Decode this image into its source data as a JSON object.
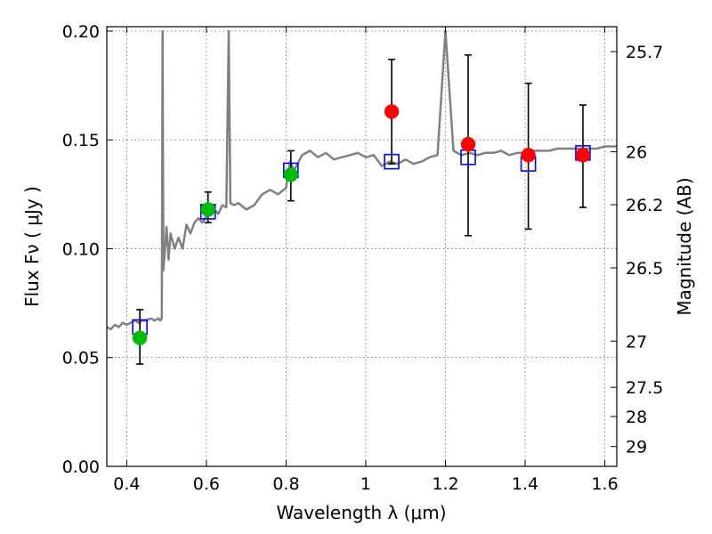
{
  "chart_data": {
    "type": "scatter",
    "title": "",
    "xlabel": "Wavelength  λ (μm)",
    "ylabel": "Flux  Fν  ( μJy )",
    "y2label": "Magnitude (AB)",
    "xlim": [
      0.35,
      1.63
    ],
    "ylim": [
      0.0,
      0.202
    ],
    "grid": true,
    "x_ticks": [
      {
        "value": 0.4,
        "label": "0.4"
      },
      {
        "value": 0.6,
        "label": "0.6"
      },
      {
        "value": 0.8,
        "label": "0.8"
      },
      {
        "value": 1.0,
        "label": "1"
      },
      {
        "value": 1.2,
        "label": "1.2"
      },
      {
        "value": 1.4,
        "label": "1.4"
      },
      {
        "value": 1.6,
        "label": "1.6"
      }
    ],
    "y_ticks": [
      {
        "value": 0.0,
        "label": "0.00"
      },
      {
        "value": 0.05,
        "label": "0.05"
      },
      {
        "value": 0.1,
        "label": "0.10"
      },
      {
        "value": 0.15,
        "label": "0.15"
      },
      {
        "value": 0.2,
        "label": "0.20"
      }
    ],
    "y2_ticks": [
      {
        "value": 25.7,
        "label": "25.7"
      },
      {
        "value": 26.0,
        "label": "26"
      },
      {
        "value": 26.2,
        "label": "26.2"
      },
      {
        "value": 26.5,
        "label": "26.5"
      },
      {
        "value": 27.0,
        "label": "27"
      },
      {
        "value": 27.5,
        "label": "27.5"
      },
      {
        "value": 28.0,
        "label": "28"
      },
      {
        "value": 29.0,
        "label": "29"
      }
    ],
    "colors": {
      "spectrum": "#808080",
      "model_box": "#0000ff",
      "optical_points": "#00bb00",
      "nir_points": "#ff0000",
      "error_bars": "#000000"
    },
    "series": [
      {
        "kind": "spectrum",
        "x": [
          0.35,
          0.36,
          0.37,
          0.38,
          0.39,
          0.4,
          0.41,
          0.42,
          0.43,
          0.44,
          0.45,
          0.46,
          0.47,
          0.48,
          0.484,
          0.488,
          0.49,
          0.492,
          0.496,
          0.5,
          0.505,
          0.51,
          0.52,
          0.53,
          0.54,
          0.55,
          0.56,
          0.57,
          0.58,
          0.59,
          0.6,
          0.61,
          0.62,
          0.63,
          0.64,
          0.65,
          0.656,
          0.66,
          0.67,
          0.68,
          0.7,
          0.72,
          0.74,
          0.76,
          0.78,
          0.8,
          0.81,
          0.82,
          0.84,
          0.86,
          0.88,
          0.9,
          0.92,
          0.94,
          0.96,
          0.98,
          1.0,
          1.02,
          1.04,
          1.06,
          1.08,
          1.1,
          1.12,
          1.14,
          1.16,
          1.18,
          1.2,
          1.22,
          1.24,
          1.26,
          1.28,
          1.3,
          1.32,
          1.34,
          1.36,
          1.38,
          1.4,
          1.42,
          1.44,
          1.46,
          1.48,
          1.5,
          1.52,
          1.54,
          1.56,
          1.58,
          1.6,
          1.63
        ],
        "y": [
          0.064,
          0.063,
          0.065,
          0.064,
          0.066,
          0.065,
          0.066,
          0.067,
          0.066,
          0.067,
          0.067,
          0.068,
          0.067,
          0.068,
          0.067,
          0.068,
          0.2,
          0.09,
          0.1,
          0.11,
          0.095,
          0.107,
          0.1,
          0.105,
          0.1,
          0.111,
          0.107,
          0.112,
          0.114,
          0.112,
          0.115,
          0.117,
          0.118,
          0.116,
          0.12,
          0.119,
          0.2,
          0.121,
          0.12,
          0.121,
          0.118,
          0.12,
          0.125,
          0.127,
          0.125,
          0.128,
          0.14,
          0.136,
          0.143,
          0.145,
          0.142,
          0.144,
          0.141,
          0.142,
          0.143,
          0.144,
          0.142,
          0.143,
          0.138,
          0.14,
          0.139,
          0.141,
          0.139,
          0.14,
          0.142,
          0.143,
          0.2,
          0.145,
          0.143,
          0.144,
          0.143,
          0.144,
          0.144,
          0.145,
          0.143,
          0.144,
          0.144,
          0.145,
          0.145,
          0.145,
          0.146,
          0.146,
          0.146,
          0.146,
          0.146,
          0.146,
          0.147,
          0.147
        ]
      },
      {
        "kind": "model_boxes",
        "x": [
          0.433,
          0.604,
          0.812,
          1.065,
          1.257,
          1.408,
          1.545
        ],
        "y": [
          0.064,
          0.117,
          0.136,
          0.14,
          0.142,
          0.139,
          0.144
        ]
      },
      {
        "kind": "optical_points",
        "x": [
          0.433,
          0.604,
          0.812
        ],
        "y": [
          0.059,
          0.118,
          0.134
        ],
        "yerr_low": [
          0.047,
          0.112,
          0.122
        ],
        "yerr_high": [
          0.072,
          0.126,
          0.145
        ]
      },
      {
        "kind": "nir_points",
        "x": [
          1.065,
          1.257,
          1.408,
          1.545
        ],
        "y": [
          0.163,
          0.148,
          0.143,
          0.143
        ],
        "yerr_low": [
          0.139,
          0.106,
          0.109,
          0.119
        ],
        "yerr_high": [
          0.187,
          0.189,
          0.176,
          0.166
        ]
      }
    ]
  }
}
